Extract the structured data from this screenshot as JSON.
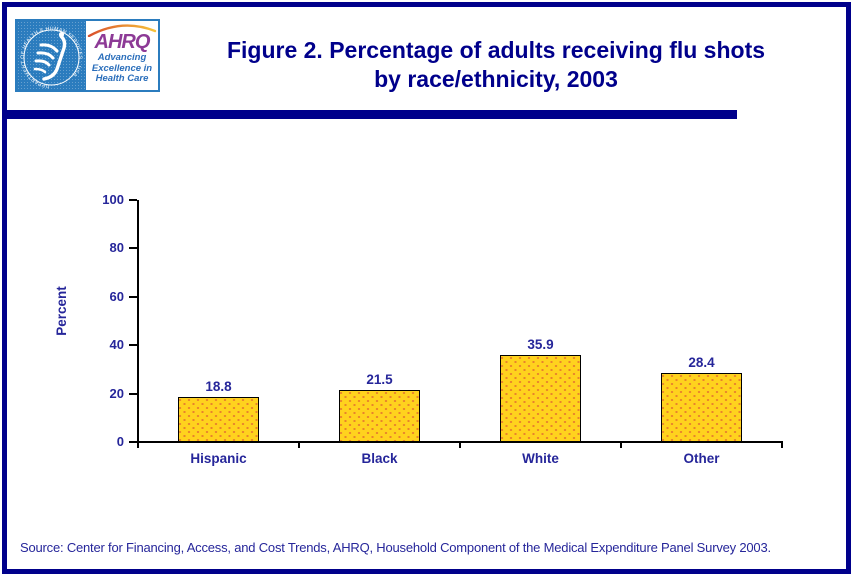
{
  "page": {
    "border_color": "#00008B",
    "background": "#FFFFFF"
  },
  "logo": {
    "seal_text": "DEPARTMENT OF HEALTH & HUMAN SERVICES · USA",
    "ahrq_acronym": "AHRQ",
    "tagline_lines": [
      "Advancing",
      "Excellence in",
      "Health Care"
    ],
    "colors": {
      "hhs_blue": "#2B7CBE",
      "ahrq_purple": "#8D3A96",
      "tagline_blue": "#2A6EBB",
      "swoosh_start": "#D94F2B",
      "swoosh_end": "#F6C33B"
    }
  },
  "title": {
    "line1": "Figure 2. Percentage of adults receiving flu shots",
    "line2": "by race/ethnicity, 2003",
    "color": "#00008B"
  },
  "chart_data": {
    "type": "bar",
    "categories": [
      "Hispanic",
      "Black",
      "White",
      "Other"
    ],
    "values": [
      18.8,
      21.5,
      35.9,
      28.4
    ],
    "value_labels": [
      "18.8",
      "21.5",
      "35.9",
      "28.4"
    ],
    "title": "Figure 2. Percentage of adults receiving flu shots by race/ethnicity, 2003",
    "xlabel": "",
    "ylabel": "Percent",
    "ylim": [
      0,
      100
    ],
    "yticks": [
      0,
      20,
      40,
      60,
      80,
      100
    ],
    "grid": false,
    "legend": null,
    "bar_fill": "#FFD21E",
    "bar_dot_color": "#E8832C",
    "bar_border": "#000000",
    "text_color": "#26269A"
  },
  "source_note": {
    "text": "Source: Center for Financing, Access, and Cost Trends, AHRQ, Household Component of the Medical Expenditure Panel Survey 2003."
  }
}
